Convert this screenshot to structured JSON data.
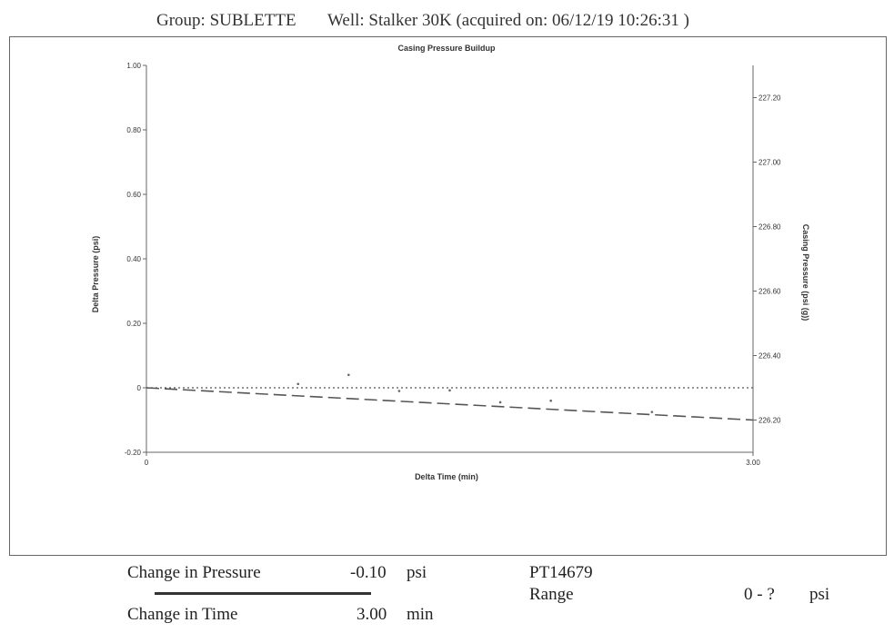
{
  "header": {
    "group": "Group: SUBLETTE",
    "well": "Well: Stalker 30K (acquired on: 06/12/19 10:26:31 )"
  },
  "chart_data": {
    "type": "line",
    "title": "Casing Pressure Buildup",
    "xlabel": "Delta Time (min)",
    "ylabel": "Delta Pressure (psi)",
    "y2label": "Casing Pressure (psi (g))",
    "xlim": [
      0,
      3.0
    ],
    "ylim": [
      -0.2,
      1.0
    ],
    "y2lim": [
      226.1,
      227.3
    ],
    "x_ticks": [
      "0",
      "3.00"
    ],
    "y_ticks": [
      "1.00",
      "0.80",
      "0.60",
      "0.40",
      "0.20",
      "0",
      "-0.20"
    ],
    "y2_ticks": [
      "227.20",
      "227.00",
      "226.80",
      "226.60",
      "226.40",
      "226.20"
    ],
    "grid": false,
    "series": [
      {
        "style": "dashed",
        "x": [
          0,
          3.0
        ],
        "y": [
          0,
          -0.1
        ]
      },
      {
        "style": "dotted",
        "x": [
          0,
          3.0
        ],
        "y": [
          0,
          0
        ]
      }
    ],
    "scatter_points": [
      {
        "x": 0.75,
        "y": 0.012
      },
      {
        "x": 1.0,
        "y": 0.04
      },
      {
        "x": 1.25,
        "y": -0.01
      },
      {
        "x": 1.5,
        "y": -0.008
      },
      {
        "x": 1.75,
        "y": -0.045
      },
      {
        "x": 2.0,
        "y": -0.04
      },
      {
        "x": 2.5,
        "y": -0.075
      }
    ]
  },
  "summary": {
    "pressure_label": "Change in Pressure",
    "pressure_value": "-0.10",
    "pressure_unit": "psi",
    "time_label": "Change in Time",
    "time_value": "3.00",
    "time_unit": "min",
    "gauge_id": "PT14679",
    "range_label": "Range",
    "range_value": "0 - ?",
    "range_unit": "psi"
  }
}
